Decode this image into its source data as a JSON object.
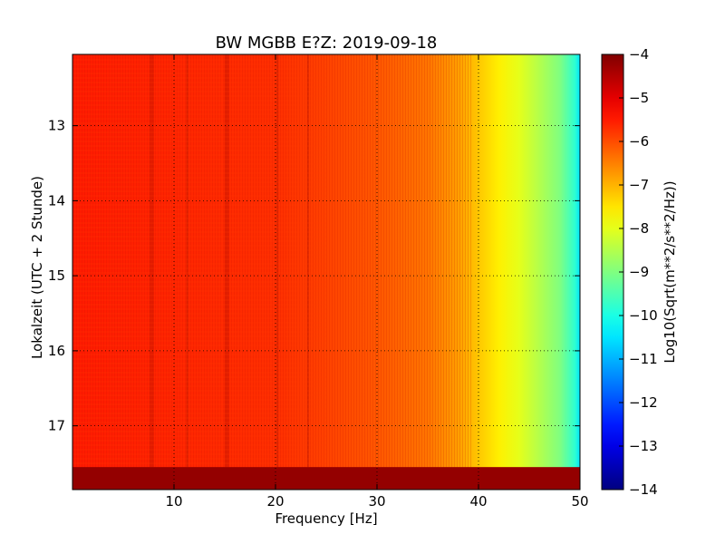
{
  "chart_data": {
    "type": "heatmap",
    "title": "BW MGBB E?Z: 2019-09-18",
    "xlabel": "Frequency [Hz]",
    "ylabel": "Lokalzeit (UTC + 2 Stunde)",
    "xlim": [
      0,
      50
    ],
    "ylim": [
      17.85,
      12.05
    ],
    "x_ticks": [
      10,
      20,
      30,
      40,
      50
    ],
    "x_tick_labels": [
      "10",
      "20",
      "30",
      "40",
      "50"
    ],
    "y_ticks": [
      13,
      14,
      15,
      16,
      17
    ],
    "y_tick_labels": [
      "13",
      "14",
      "15",
      "16",
      "17"
    ],
    "grid": true,
    "colormap": "jet",
    "colorbar": {
      "label": "Log10(Sqrt(m**2/s**2/Hz))",
      "range": [
        -14,
        -4
      ],
      "ticks": [
        -4,
        -5,
        -6,
        -7,
        -8,
        -9,
        -10,
        -11,
        -12,
        -13,
        -14
      ],
      "tick_labels": [
        "−4",
        "−5",
        "−6",
        "−7",
        "−8",
        "−9",
        "−10",
        "−11",
        "−12",
        "−13",
        "−14"
      ]
    },
    "spectrum_profile": [
      {
        "freq": 0,
        "value": -5.5
      },
      {
        "freq": 10,
        "value": -5.6
      },
      {
        "freq": 20,
        "value": -5.7
      },
      {
        "freq": 25,
        "value": -5.9
      },
      {
        "freq": 30,
        "value": -6.1
      },
      {
        "freq": 35,
        "value": -6.4
      },
      {
        "freq": 38,
        "value": -6.8
      },
      {
        "freq": 40,
        "value": -7.2
      },
      {
        "freq": 42,
        "value": -7.6
      },
      {
        "freq": 44,
        "value": -8.0
      },
      {
        "freq": 46,
        "value": -8.5
      },
      {
        "freq": 48,
        "value": -9.0
      },
      {
        "freq": 49.5,
        "value": -9.8
      },
      {
        "freq": 50,
        "value": -10.5
      }
    ],
    "spectral_lines_hz": [
      7.8,
      15.2,
      23.2,
      20.2,
      11.3
    ],
    "data_gap": {
      "from_time": 17.55,
      "to_time": 17.85,
      "value": -4.2
    }
  }
}
